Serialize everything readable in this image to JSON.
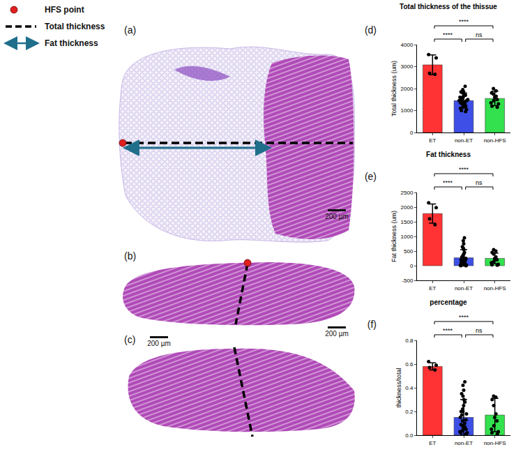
{
  "legend_items": [
    {
      "marker": "circle",
      "color": "#e02020",
      "label": "HFS point"
    },
    {
      "marker": "dashed_line",
      "color": "#000000",
      "label": "Total thickness"
    },
    {
      "marker": "double_arrow",
      "color": "#1f6f8b",
      "label": "Fat thickness"
    }
  ],
  "images": [
    {
      "label": "(a)",
      "scale_bar": "200 µm"
    },
    {
      "label": "(b)",
      "scale_bar": "200 µm"
    },
    {
      "label": "(c)",
      "scale_bar": "200 µm"
    }
  ],
  "chart_data": [
    {
      "type": "bar",
      "panel": "(d)",
      "title": "Total thickness of the thissue",
      "y_label": "Total thickness (um)",
      "categories": [
        "ET",
        "non-ET",
        "non-HFS"
      ],
      "values": [
        3080,
        1450,
        1550
      ],
      "errors": [
        450,
        340,
        330
      ],
      "colors": [
        "#ff3333",
        "#3d4fe6",
        "#33e04d"
      ],
      "points": [
        [
          3550,
          3400,
          2700,
          2650
        ],
        [
          2100,
          1950,
          1850,
          1850,
          1800,
          1750,
          1700,
          1650,
          1600,
          1600,
          1550,
          1500,
          1500,
          1450,
          1450,
          1400,
          1400,
          1350,
          1300,
          1300,
          1250,
          1200,
          1150,
          1100,
          1050,
          1000,
          950
        ],
        [
          2000,
          1900,
          1800,
          1750,
          1650,
          1600,
          1500,
          1450,
          1350,
          1300,
          1200,
          1150
        ]
      ],
      "ylim": [
        0,
        4000
      ],
      "yticks": [
        0,
        1000,
        2000,
        3000,
        4000
      ],
      "comparisons": [
        {
          "from": "ET",
          "to": "non-ET",
          "label": "****"
        },
        {
          "from": "non-ET",
          "to": "non-HFS",
          "label": "ns"
        },
        {
          "from": "ET",
          "to": "non-HFS",
          "label": "****"
        }
      ]
    },
    {
      "type": "bar",
      "panel": "(e)",
      "title": "Fat thickness",
      "y_label": "Fat thickness (um)",
      "categories": [
        "ET",
        "non-ET",
        "non-HFS"
      ],
      "values": [
        1780,
        270,
        250
      ],
      "errors": [
        330,
        280,
        180
      ],
      "colors": [
        "#ff3333",
        "#3d4fe6",
        "#33e04d"
      ],
      "points": [
        [
          2150,
          1980,
          1600,
          1400
        ],
        [
          950,
          850,
          750,
          650,
          600,
          550,
          450,
          400,
          350,
          300,
          300,
          250,
          200,
          200,
          200,
          150,
          150,
          100,
          100,
          100,
          50,
          50,
          50,
          20,
          20,
          0,
          0
        ],
        [
          550,
          500,
          450,
          400,
          300,
          250,
          200,
          150,
          100,
          50,
          30,
          20
        ]
      ],
      "ylim": [
        -500,
        2500
      ],
      "yticks": [
        -500,
        0,
        500,
        1000,
        1500,
        2000,
        2500
      ],
      "comparisons": [
        {
          "from": "ET",
          "to": "non-ET",
          "label": "****"
        },
        {
          "from": "non-ET",
          "to": "non-HFS",
          "label": "ns"
        },
        {
          "from": "ET",
          "to": "non-HFS",
          "label": "****"
        }
      ]
    },
    {
      "type": "bar",
      "panel": "(f)",
      "title": "percentage",
      "y_label": "thickness/total",
      "categories": [
        "ET",
        "non-ET",
        "non-HFS"
      ],
      "values": [
        0.58,
        0.15,
        0.17
      ],
      "errors": [
        0.03,
        0.15,
        0.14
      ],
      "colors": [
        "#ff3333",
        "#3d4fe6",
        "#33e04d"
      ],
      "points": [
        [
          0.62,
          0.59,
          0.57,
          0.55
        ],
        [
          0.45,
          0.42,
          0.38,
          0.35,
          0.33,
          0.3,
          0.28,
          0.25,
          0.22,
          0.2,
          0.2,
          0.18,
          0.17,
          0.15,
          0.13,
          0.12,
          0.1,
          0.09,
          0.08,
          0.07,
          0.06,
          0.05,
          0.04,
          0.03,
          0.02,
          0.02,
          0.01
        ],
        [
          0.33,
          0.32,
          0.3,
          0.25,
          0.18,
          0.15,
          0.12,
          0.08,
          0.05,
          0.03,
          0.02,
          0.01
        ]
      ],
      "ylim": [
        0,
        0.8
      ],
      "yticks": [
        {
          "value": 0,
          "label": "0.0"
        },
        {
          "value": 0.2,
          "label": "0.2"
        },
        {
          "value": 0.4,
          "label": "0.4"
        },
        {
          "value": 0.6,
          "label": "0.6"
        },
        {
          "value": 0.8,
          "label": "0.8"
        }
      ],
      "comparisons": [
        {
          "from": "ET",
          "to": "non-ET",
          "label": "****"
        },
        {
          "from": "non-ET",
          "to": "non-HFS",
          "label": "ns"
        },
        {
          "from": "ET",
          "to": "non-HFS",
          "label": "****"
        }
      ]
    }
  ]
}
